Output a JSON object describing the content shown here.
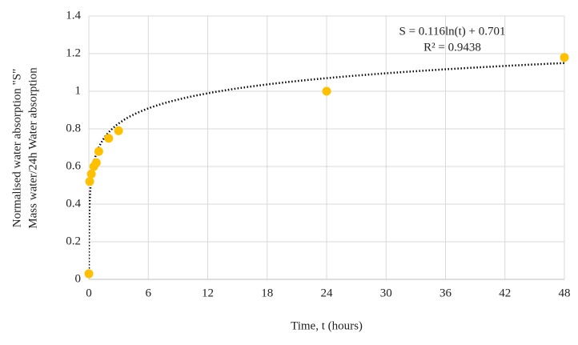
{
  "chart_data": {
    "type": "scatter",
    "xlabel": "Time, t (hours)",
    "ylabel": [
      "Normalised  water absorption \"S\"",
      "Mass water/24h Water absorption"
    ],
    "x": [
      0,
      0.083,
      0.25,
      0.5,
      0.75,
      1,
      2,
      3,
      24,
      48
    ],
    "series": [
      {
        "color": "#ffc000",
        "values": [
          0.03,
          0.52,
          0.56,
          0.6,
          0.62,
          0.68,
          0.75,
          0.79,
          1.0,
          1.18
        ]
      }
    ],
    "trendline": {
      "type": "log",
      "a": 0.116,
      "b": 0.701,
      "color": "#000000",
      "equation": "S = 0.116ln(t) + 0.701",
      "r2": "R² = 0.9438"
    },
    "xlim": [
      0,
      48
    ],
    "xticks": [
      0,
      6,
      12,
      18,
      24,
      30,
      36,
      42,
      48
    ],
    "ylim": [
      0,
      1.4
    ],
    "yticks": [
      0,
      0.2,
      0.4,
      0.6,
      0.8,
      1,
      1.2,
      1.4
    ],
    "grid": true
  }
}
